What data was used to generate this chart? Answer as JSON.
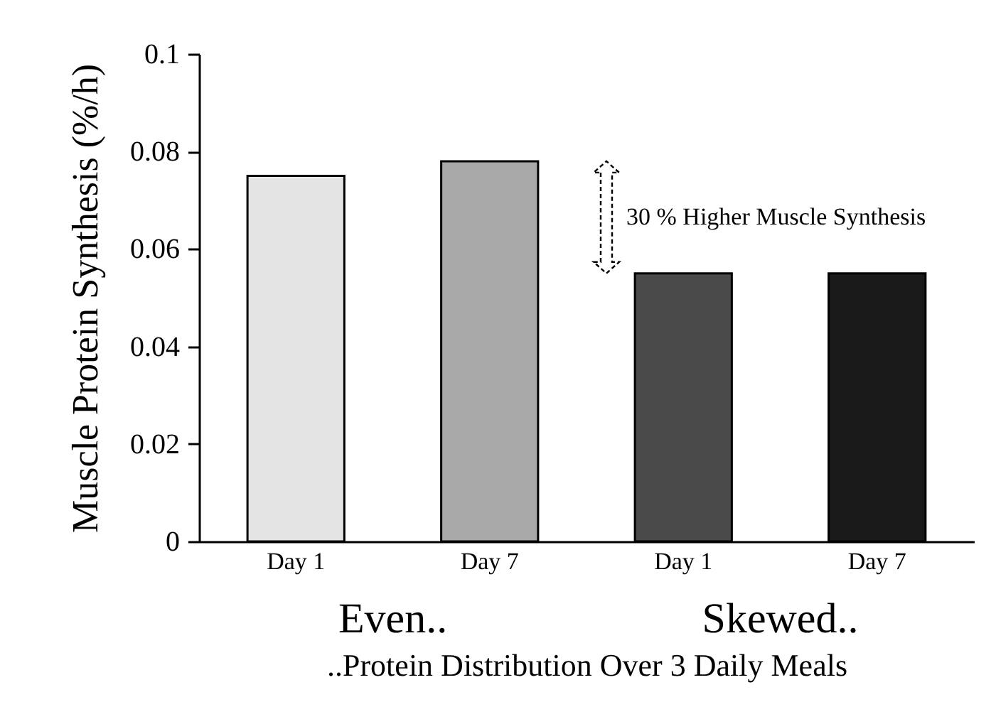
{
  "chart_data": {
    "type": "bar",
    "categories": [
      "Day 1",
      "Day 7",
      "Day 1",
      "Day 7"
    ],
    "values": [
      0.075,
      0.078,
      0.055,
      0.055
    ],
    "colors": [
      "#e4e4e4",
      "#a8a8a8",
      "#4a4a4a",
      "#1a1a1a"
    ],
    "ylabel": "Muscle Protein Synthesis (%/h)",
    "xlabel": "..Protein Distribution Over 3 Daily Meals",
    "ylim": [
      0,
      0.1
    ],
    "yticks": [
      0,
      0.02,
      0.04,
      0.06,
      0.08,
      {
        "value": 0.1,
        "label": "0.1"
      }
    ],
    "annotations": [
      "Even..",
      "Skewed..",
      "30 % Higher Muscle Synthesis"
    ],
    "grid": false,
    "legend": false
  }
}
